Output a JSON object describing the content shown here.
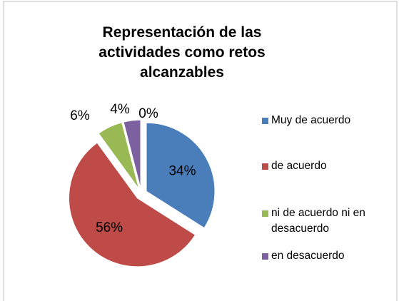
{
  "chart_data": {
    "type": "pie",
    "title": "Representación de las actividades como retos alcanzables",
    "categories": [
      "Muy de acuerdo",
      "de acuerdo",
      "ni de acuerdo ni en desacuerdo",
      "en desacuerdo",
      null
    ],
    "values": [
      34,
      56,
      6,
      4,
      0
    ],
    "value_labels": [
      "34%",
      "56%",
      "6%",
      "4%",
      "0%"
    ],
    "colors": [
      "#4a7ebb",
      "#be4b48",
      "#98b954",
      "#7d60a0",
      "#4bacc6"
    ],
    "legend": "right"
  }
}
